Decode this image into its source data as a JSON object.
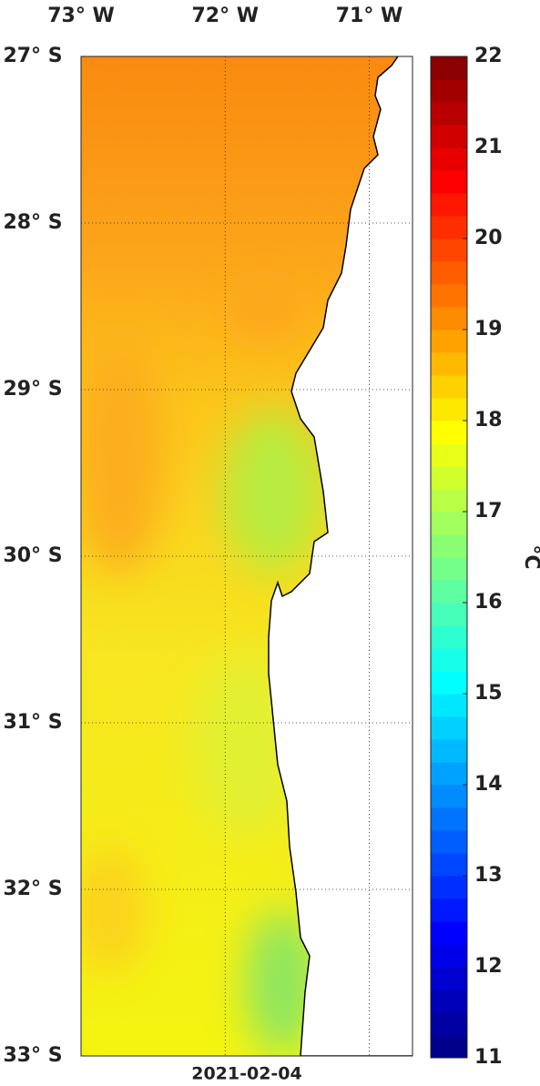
{
  "map": {
    "lonlim": [
      -73,
      -70.7
    ],
    "latlim": [
      -33,
      -27
    ],
    "lon_ticks": [
      {
        "value": -73,
        "label": "73° W"
      },
      {
        "value": -72,
        "label": "72° W"
      },
      {
        "value": -71,
        "label": "71° W"
      }
    ],
    "lat_ticks": [
      {
        "value": -27,
        "label": "27° S"
      },
      {
        "value": -28,
        "label": "28° S"
      },
      {
        "value": -29,
        "label": "29° S"
      },
      {
        "value": -30,
        "label": "30° S"
      },
      {
        "value": -31,
        "label": "31° S"
      },
      {
        "value": -32,
        "label": "32° S"
      },
      {
        "value": -33,
        "label": "33° S"
      }
    ],
    "colorbar": {
      "lim": [
        11,
        22
      ],
      "ticks": [
        11,
        12,
        13,
        14,
        15,
        16,
        17,
        18,
        19,
        20,
        21,
        22
      ],
      "label": "°C"
    },
    "date": "2021-02-04"
  }
}
